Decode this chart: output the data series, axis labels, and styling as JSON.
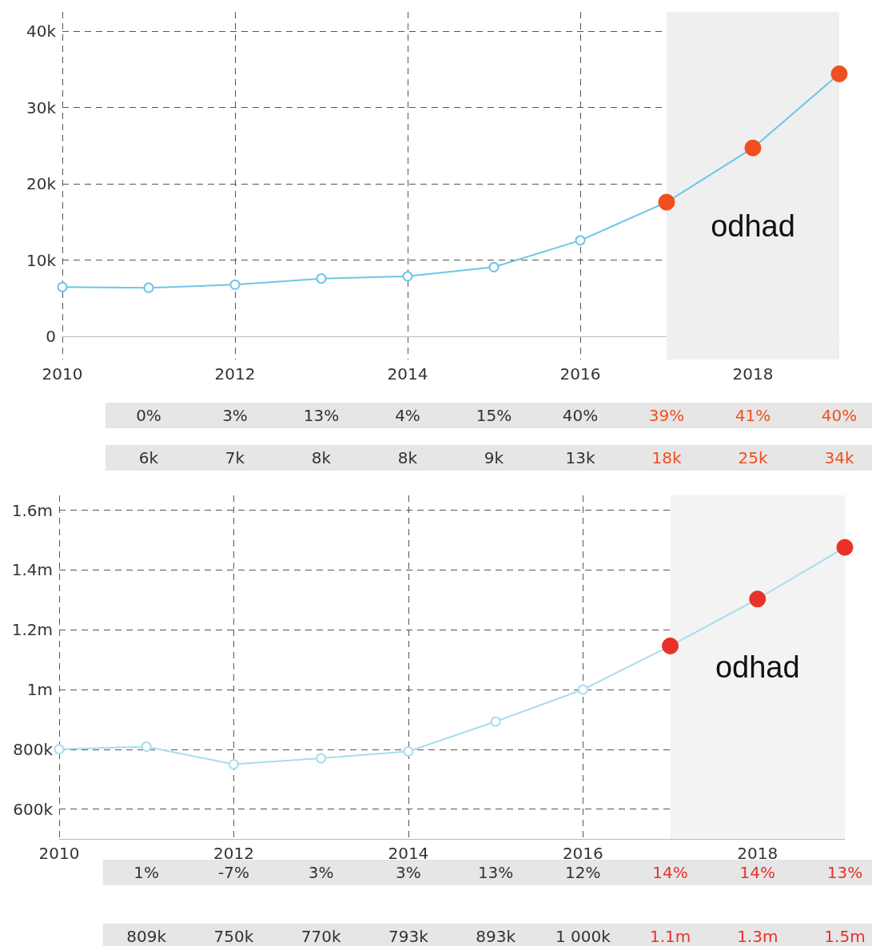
{
  "chart_data": [
    {
      "type": "line",
      "x": [
        2010,
        2011,
        2012,
        2013,
        2014,
        2015,
        2016,
        2017,
        2018,
        2019
      ],
      "series": [
        {
          "color": "#6ec6e6",
          "colors": [
            "#6ec6e6",
            "#6ec6e6",
            "#6ec6e6",
            "#6ec6e6",
            "#6ec6e6",
            "#6ec6e6",
            "#6ec6e6",
            "#f0501e",
            "#f0501e",
            "#f0501e"
          ],
          "values": [
            6500,
            6400,
            6800,
            7600,
            7900,
            9100,
            12600,
            17600,
            24700,
            34400
          ]
        }
      ],
      "xlim": [
        2010,
        2019
      ],
      "xticks": [
        2010,
        2012,
        2014,
        2016,
        2018
      ],
      "ylim": [
        -3000,
        42500
      ],
      "yticks": [
        0,
        {
          "value": 10000,
          "label": "10k"
        },
        {
          "value": 20000,
          "label": "20k"
        },
        {
          "value": 30000,
          "label": "30k"
        },
        {
          "value": 40000,
          "label": "40k"
        }
      ],
      "grid": true,
      "marker": "circle",
      "line_style": "solid",
      "bands": [
        {
          "axis": "x",
          "from": 2017,
          "to": 2019,
          "label": "odhad",
          "color": "#efefef"
        }
      ],
      "annotations": [
        "0%",
        "3%",
        "13%",
        "4%",
        "15%",
        "40%",
        "39%",
        "41%",
        "40%",
        "6k",
        "7k",
        "8k",
        "8k",
        "9k",
        "13k",
        "18k",
        "25k",
        "34k"
      ]
    },
    {
      "type": "line",
      "x": [
        2010,
        2011,
        2012,
        2013,
        2014,
        2015,
        2016,
        2017,
        2018,
        2019
      ],
      "series": [
        {
          "color": "#a8dcef",
          "colors": [
            "#a8dcef",
            "#a8dcef",
            "#a8dcef",
            "#a8dcef",
            "#a8dcef",
            "#a8dcef",
            "#a8dcef",
            "#e8312a",
            "#e8312a",
            "#e8312a"
          ],
          "values": [
            800000,
            809000,
            750000,
            770000,
            793000,
            893000,
            1000000,
            1146000,
            1303000,
            1476000
          ]
        }
      ],
      "xlim": [
        2010,
        2019
      ],
      "xticks": [
        2010,
        2012,
        2014,
        2016,
        2018
      ],
      "ylim": [
        500000,
        1650000
      ],
      "yticks": [
        {
          "value": 600000,
          "label": "600k"
        },
        {
          "value": 800000,
          "label": "800k"
        },
        {
          "value": 1000000,
          "label": "1m"
        },
        {
          "value": 1200000,
          "label": "1.2m"
        },
        {
          "value": 1400000,
          "label": "1.4m"
        },
        {
          "value": 1600000,
          "label": "1.6m"
        }
      ],
      "grid": true,
      "marker": "circle",
      "line_style": "solid",
      "bands": [
        {
          "axis": "x",
          "from": 2017,
          "to": 2019,
          "label": "odhad",
          "color": "#f3f3f3"
        }
      ],
      "annotations": [
        "1%",
        "-7%",
        "3%",
        "3%",
        "13%",
        "12%",
        "14%",
        "14%",
        "13%",
        "809k",
        "750k",
        "770k",
        "793k",
        "893k",
        "1 000k",
        "1.1m",
        "1.3m",
        "1.5m"
      ]
    }
  ]
}
